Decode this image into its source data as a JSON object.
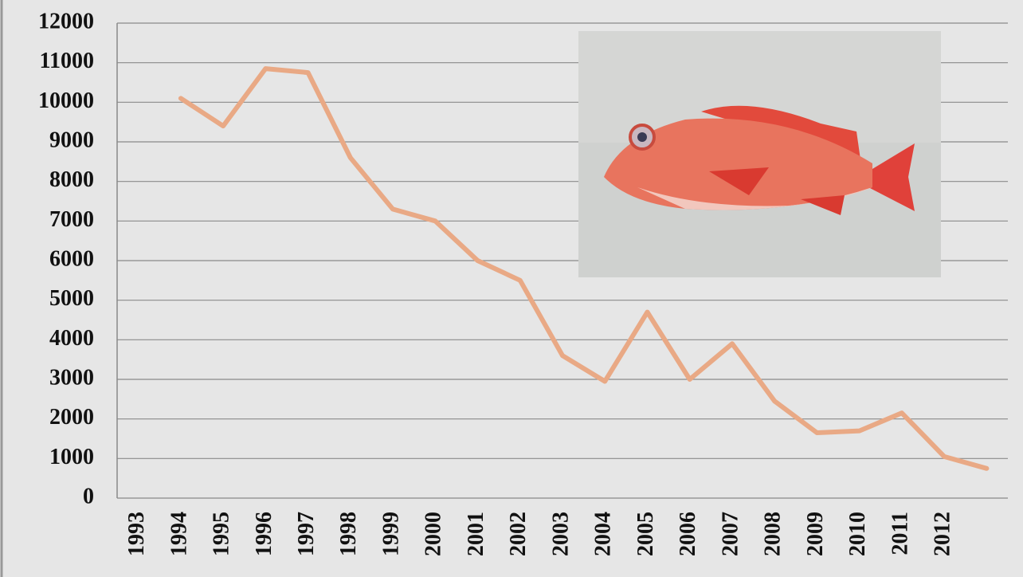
{
  "chart_data": {
    "type": "line",
    "categories": [
      "1993",
      "1994",
      "1995",
      "1996",
      "1997",
      "1998",
      "1999",
      "2000",
      "2001",
      "2002",
      "2003",
      "2004",
      "2005",
      "2006",
      "2007",
      "2008",
      "2009",
      "2010",
      "2011",
      "2012",
      null
    ],
    "values": [
      null,
      10100,
      9400,
      10850,
      10750,
      8600,
      7300,
      7000,
      6000,
      5500,
      3600,
      2950,
      4700,
      3000,
      3900,
      2450,
      1650,
      1700,
      2150,
      1050,
      750
    ],
    "color": "#e9a985",
    "ylim": [
      0,
      12000
    ],
    "yticks": [
      0,
      1000,
      2000,
      3000,
      4000,
      5000,
      6000,
      7000,
      8000,
      9000,
      10000,
      11000,
      12000
    ],
    "grid": true
  }
}
